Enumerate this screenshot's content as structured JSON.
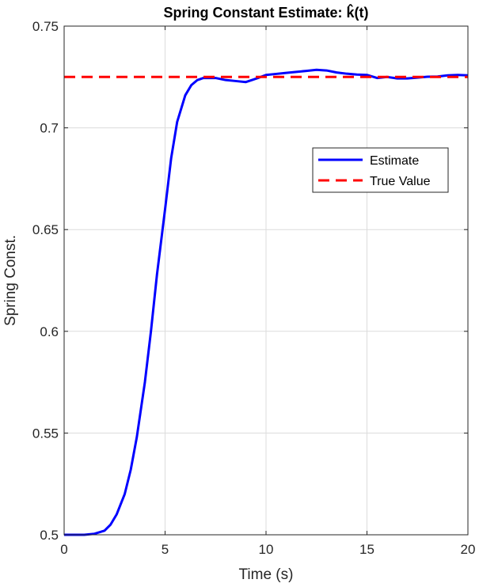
{
  "chart_data": {
    "type": "line",
    "title": "Spring Constant Estimate: k̂(t)",
    "xlabel": "Time (s)",
    "ylabel": "Spring Const.",
    "xlim": [
      0,
      20
    ],
    "ylim": [
      0.5,
      0.75
    ],
    "xticks": [
      0,
      5,
      10,
      15,
      20
    ],
    "xtick_labels": [
      "0",
      "5",
      "10",
      "15",
      "20"
    ],
    "yticks": [
      0.5,
      0.55,
      0.6,
      0.65,
      0.7,
      0.75
    ],
    "ytick_labels": [
      "0.5",
      "0.55",
      "0.6",
      "0.65",
      "0.7",
      "0.75"
    ],
    "grid": true,
    "legend_position": "right",
    "series": [
      {
        "name": "Estimate",
        "color": "#0000ff",
        "style": "solid",
        "x": [
          0,
          1,
          1.5,
          2,
          2.3,
          2.6,
          3,
          3.3,
          3.6,
          4,
          4.3,
          4.6,
          5,
          5.3,
          5.6,
          6,
          6.3,
          6.6,
          6.9,
          7.2,
          7.5,
          8,
          8.5,
          9,
          9.3,
          9.6,
          10,
          10.5,
          11,
          11.5,
          12,
          12.5,
          13,
          13.5,
          14,
          14.5,
          15,
          15.5,
          16,
          16.5,
          17,
          17.5,
          18,
          18.5,
          19,
          19.5,
          20
        ],
        "y": [
          0.5,
          0.5,
          0.5005,
          0.502,
          0.505,
          0.51,
          0.52,
          0.532,
          0.548,
          0.575,
          0.6,
          0.628,
          0.66,
          0.685,
          0.703,
          0.716,
          0.721,
          0.7235,
          0.7245,
          0.7245,
          0.7245,
          0.7235,
          0.723,
          0.7225,
          0.7235,
          0.7245,
          0.726,
          0.7265,
          0.727,
          0.7275,
          0.728,
          0.7285,
          0.7282,
          0.7272,
          0.7266,
          0.7262,
          0.726,
          0.7245,
          0.725,
          0.7243,
          0.7243,
          0.7247,
          0.7251,
          0.7252,
          0.7258,
          0.726,
          0.7258
        ]
      },
      {
        "name": "True Value",
        "color": "#ff0000",
        "style": "dashed",
        "x": [
          0,
          20
        ],
        "y": [
          0.725,
          0.725
        ]
      }
    ]
  }
}
